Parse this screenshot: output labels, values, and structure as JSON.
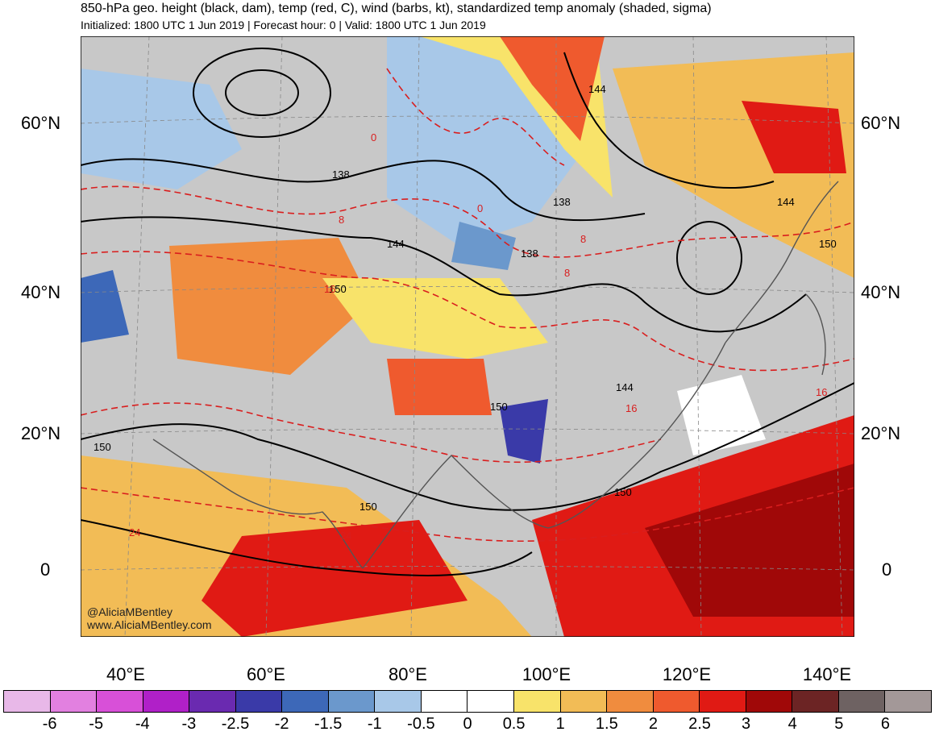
{
  "header": {
    "title": "850-hPa geo. height (black, dam), temp (red, C), wind (barbs, kt), standardized temp anomaly (shaded, sigma)",
    "subtitle": "Initialized: 1800 UTC 1 Jun 2019 | Forecast hour: 0 | Valid: 1800 UTC 1 Jun 2019"
  },
  "map": {
    "lat_labels": [
      "60°N",
      "40°N",
      "20°N",
      "0"
    ],
    "lon_labels": [
      "40°E",
      "60°E",
      "80°E",
      "100°E",
      "120°E",
      "140°E"
    ],
    "height_labels": [
      "138",
      "144",
      "144",
      "138",
      "138",
      "144",
      "150",
      "150",
      "144",
      "150",
      "150",
      "150",
      "150"
    ],
    "temp_labels": [
      "0",
      "8",
      "0",
      "8",
      "8",
      "16",
      "16",
      "24",
      "24",
      "16"
    ],
    "credit_handle": "@AliciaMBentley",
    "credit_url": "www.AliciaMBentley.com"
  },
  "colorbar": {
    "labels": [
      "-6",
      "-5",
      "-4",
      "-3",
      "-2.5",
      "-2",
      "-1.5",
      "-1",
      "-0.5",
      "0",
      "0.5",
      "1",
      "1.5",
      "2",
      "2.5",
      "3",
      "4",
      "5",
      "6"
    ],
    "colors": [
      "#e8b8e8",
      "#e280e0",
      "#d850d8",
      "#b020c8",
      "#6a2ab0",
      "#3a3aa8",
      "#3d68b8",
      "#6b98cc",
      "#a8c8e8",
      "#ffffff",
      "#ffffff",
      "#f8e36a",
      "#f2bc56",
      "#f08c3e",
      "#ef5a2e",
      "#e01a14",
      "#a00808",
      "#6c2424",
      "#6e6262",
      "#a39898"
    ]
  }
}
